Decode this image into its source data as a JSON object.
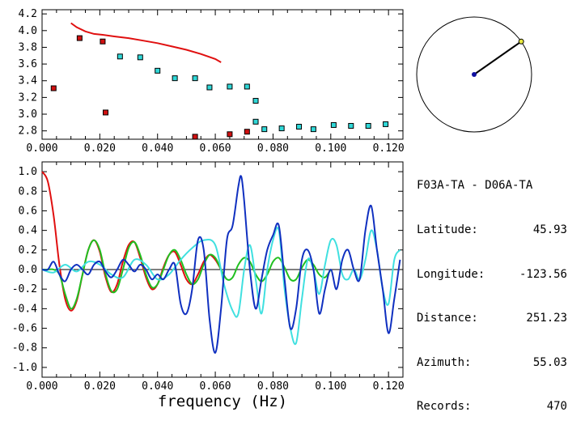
{
  "station_info": {
    "pair": "F03A-TA - D06A-TA",
    "rows": [
      {
        "label": "Latitude:",
        "value": "45.93"
      },
      {
        "label": "Longitude:",
        "value": "-123.56"
      },
      {
        "label": "Distance:",
        "value": "251.23"
      },
      {
        "label": "Azimuth:",
        "value": "55.03"
      },
      {
        "label": "Records:",
        "value": "470"
      }
    ]
  },
  "azimuth_display": {
    "azimuth_deg": 55.03,
    "colors": {
      "circle": "#000000",
      "needle": "#000000",
      "center_dot": "#1010a0",
      "tip_dot": "#e8e840"
    }
  },
  "chart_data": [
    {
      "type": "scatter",
      "name": "dispersion",
      "xlabel": "",
      "ylabel": "",
      "xlim": [
        0.0,
        0.125
      ],
      "ylim": [
        2.7,
        4.25
      ],
      "x_ticks": [
        "0.000",
        "0.020",
        "0.040",
        "0.060",
        "0.080",
        "0.100",
        "0.120"
      ],
      "y_ticks": [
        "2.8",
        "3.0",
        "3.2",
        "3.4",
        "3.6",
        "3.8",
        "4.0",
        "4.2"
      ],
      "series": [
        {
          "kind": "line",
          "color": "#e01010",
          "x": [
            0.01,
            0.012,
            0.015,
            0.018,
            0.021,
            0.025,
            0.03,
            0.035,
            0.04,
            0.045,
            0.05,
            0.055,
            0.06,
            0.062
          ],
          "y": [
            4.09,
            4.04,
            3.99,
            3.96,
            3.95,
            3.93,
            3.91,
            3.88,
            3.85,
            3.81,
            3.77,
            3.72,
            3.66,
            3.62
          ]
        },
        {
          "kind": "points",
          "color": "#d01010",
          "x": [
            0.004,
            0.013,
            0.021,
            0.022,
            0.053,
            0.065,
            0.071
          ],
          "y": [
            3.31,
            3.91,
            3.87,
            3.02,
            2.73,
            2.76,
            2.79
          ]
        },
        {
          "kind": "points",
          "color": "#30d8d8",
          "x": [
            0.027,
            0.034,
            0.04,
            0.046,
            0.053,
            0.058,
            0.065,
            0.071,
            0.074,
            0.074,
            0.077,
            0.083,
            0.089,
            0.094,
            0.101,
            0.107,
            0.113,
            0.119
          ],
          "y": [
            3.69,
            3.68,
            3.52,
            3.43,
            3.43,
            3.32,
            3.33,
            3.33,
            3.16,
            2.91,
            2.82,
            2.83,
            2.85,
            2.82,
            2.87,
            2.86,
            2.86,
            2.88
          ]
        }
      ]
    },
    {
      "type": "line",
      "name": "correlation",
      "xlabel": "frequency (Hz)",
      "ylabel": "",
      "xlim": [
        0.0,
        0.125
      ],
      "ylim": [
        -1.1,
        1.1
      ],
      "x_ticks": [
        "0.000",
        "0.020",
        "0.040",
        "0.060",
        "0.080",
        "0.100",
        "0.120"
      ],
      "y_ticks": [
        "-1.0",
        "-0.8",
        "-0.6",
        "-0.4",
        "-0.2",
        "0.0",
        "0.2",
        "0.4",
        "0.6",
        "0.8",
        "1.0"
      ],
      "series": [
        {
          "color": "#e01010",
          "x": [
            0.0,
            0.002,
            0.004,
            0.006,
            0.008,
            0.01,
            0.012,
            0.014,
            0.016,
            0.018,
            0.02,
            0.022,
            0.024,
            0.026,
            0.028,
            0.03,
            0.032,
            0.034,
            0.036,
            0.038,
            0.04,
            0.042,
            0.044,
            0.046,
            0.048,
            0.05,
            0.052,
            0.054,
            0.056,
            0.058,
            0.06,
            0.062
          ],
          "y": [
            1.0,
            0.9,
            0.55,
            0.05,
            -0.3,
            -0.42,
            -0.32,
            -0.05,
            0.2,
            0.3,
            0.18,
            -0.08,
            -0.23,
            -0.15,
            0.08,
            0.25,
            0.28,
            0.12,
            -0.08,
            -0.2,
            -0.15,
            0.02,
            0.15,
            0.18,
            0.05,
            -0.1,
            -0.15,
            -0.05,
            0.08,
            0.15,
            0.1,
            0.0
          ]
        },
        {
          "color": "#20c020",
          "x": [
            0.0,
            0.002,
            0.004,
            0.006,
            0.008,
            0.01,
            0.012,
            0.014,
            0.016,
            0.018,
            0.02,
            0.022,
            0.024,
            0.026,
            0.028,
            0.03,
            0.032,
            0.034,
            0.036,
            0.038,
            0.04,
            0.042,
            0.044,
            0.046,
            0.048,
            0.05,
            0.052,
            0.054,
            0.056,
            0.058,
            0.06,
            0.062,
            0.064,
            0.066,
            0.068,
            0.07,
            0.072,
            0.074,
            0.076,
            0.078,
            0.08,
            0.082,
            0.084,
            0.086,
            0.088,
            0.09,
            0.092,
            0.094,
            0.096,
            0.098,
            0.1
          ],
          "y": [
            0.0,
            0.0,
            0.0,
            -0.05,
            -0.25,
            -0.4,
            -0.3,
            -0.05,
            0.2,
            0.3,
            0.2,
            -0.05,
            -0.22,
            -0.2,
            0.0,
            0.22,
            0.28,
            0.15,
            -0.05,
            -0.18,
            -0.15,
            0.0,
            0.15,
            0.2,
            0.1,
            -0.05,
            -0.15,
            -0.1,
            0.05,
            0.15,
            0.12,
            0.0,
            -0.1,
            -0.08,
            0.05,
            0.12,
            0.08,
            -0.05,
            -0.12,
            -0.05,
            0.08,
            0.12,
            0.02,
            -0.1,
            -0.1,
            0.02,
            0.1,
            0.05,
            -0.05,
            -0.08,
            0.0
          ]
        },
        {
          "color": "#40e0e0",
          "x": [
            0.0,
            0.004,
            0.008,
            0.012,
            0.016,
            0.02,
            0.024,
            0.028,
            0.032,
            0.036,
            0.04,
            0.044,
            0.048,
            0.052,
            0.056,
            0.06,
            0.063,
            0.066,
            0.068,
            0.07,
            0.072,
            0.074,
            0.076,
            0.078,
            0.08,
            0.082,
            0.084,
            0.086,
            0.088,
            0.09,
            0.092,
            0.094,
            0.096,
            0.098,
            0.1,
            0.102,
            0.104,
            0.106,
            0.108,
            0.11,
            0.112,
            0.114,
            0.116,
            0.118,
            0.12,
            0.122,
            0.124
          ],
          "y": [
            0.0,
            -0.03,
            0.05,
            -0.02,
            0.08,
            0.05,
            -0.05,
            -0.08,
            0.1,
            0.05,
            -0.1,
            -0.05,
            0.1,
            0.22,
            0.3,
            0.25,
            -0.15,
            -0.42,
            -0.45,
            0.0,
            0.25,
            -0.1,
            -0.45,
            0.0,
            0.3,
            0.4,
            -0.2,
            -0.6,
            -0.75,
            -0.3,
            0.1,
            0.0,
            -0.25,
            0.05,
            0.3,
            0.25,
            -0.05,
            -0.1,
            0.0,
            -0.1,
            0.1,
            0.4,
            0.2,
            -0.2,
            -0.35,
            0.1,
            0.2
          ]
        },
        {
          "color": "#1030c0",
          "x": [
            0.0,
            0.002,
            0.004,
            0.006,
            0.008,
            0.01,
            0.012,
            0.014,
            0.016,
            0.018,
            0.02,
            0.022,
            0.024,
            0.026,
            0.028,
            0.03,
            0.032,
            0.034,
            0.036,
            0.038,
            0.04,
            0.042,
            0.044,
            0.046,
            0.048,
            0.05,
            0.052,
            0.054,
            0.056,
            0.058,
            0.06,
            0.062,
            0.064,
            0.066,
            0.068,
            0.069,
            0.07,
            0.072,
            0.074,
            0.076,
            0.078,
            0.08,
            0.082,
            0.084,
            0.086,
            0.088,
            0.09,
            0.092,
            0.094,
            0.096,
            0.098,
            0.1,
            0.102,
            0.104,
            0.106,
            0.108,
            0.11,
            0.112,
            0.114,
            0.116,
            0.118,
            0.12,
            0.122,
            0.124
          ],
          "y": [
            0.0,
            0.0,
            0.08,
            -0.05,
            -0.12,
            0.0,
            0.05,
            0.0,
            -0.05,
            0.05,
            0.08,
            -0.02,
            -0.08,
            0.0,
            0.1,
            0.05,
            -0.02,
            0.05,
            0.0,
            -0.1,
            -0.05,
            -0.1,
            0.0,
            0.05,
            -0.35,
            -0.45,
            -0.2,
            0.3,
            0.2,
            -0.5,
            -0.85,
            -0.4,
            0.3,
            0.45,
            0.85,
            0.95,
            0.7,
            0.0,
            -0.4,
            -0.1,
            0.2,
            0.35,
            0.45,
            -0.1,
            -0.6,
            -0.4,
            0.1,
            0.2,
            0.0,
            -0.45,
            -0.2,
            0.0,
            -0.2,
            0.1,
            0.2,
            0.0,
            -0.1,
            0.4,
            0.65,
            0.2,
            -0.2,
            -0.65,
            -0.3,
            0.1
          ]
        }
      ]
    }
  ]
}
